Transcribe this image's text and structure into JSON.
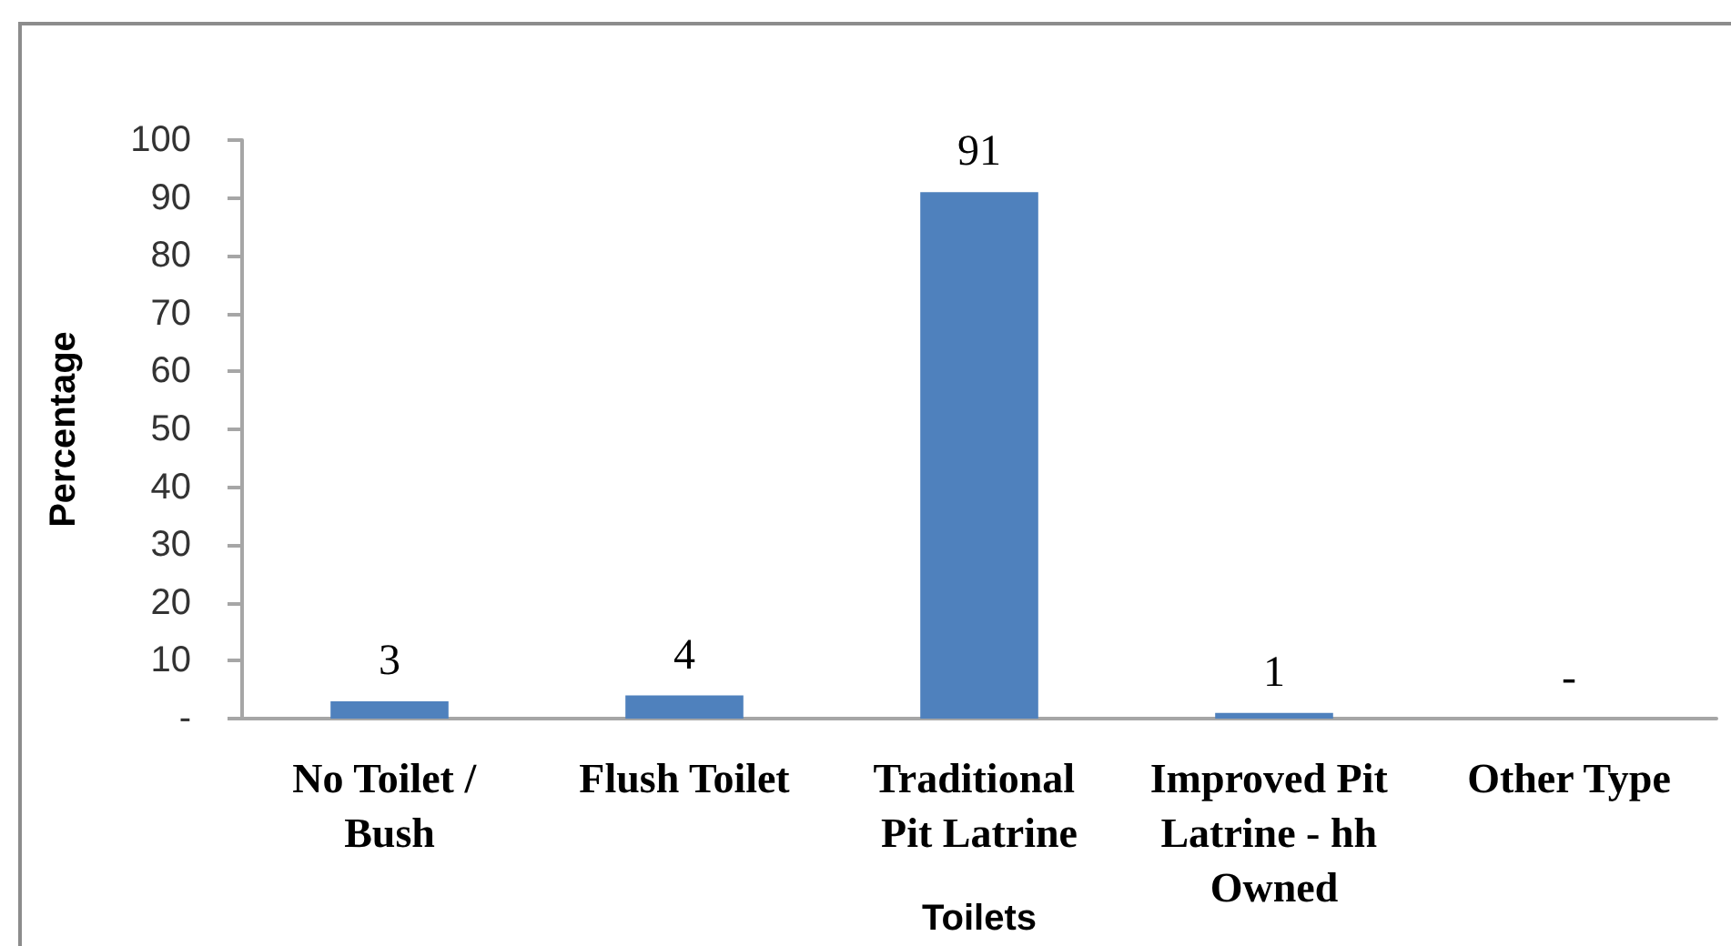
{
  "chart_data": {
    "type": "bar",
    "xlabel": "Toilets",
    "ylabel": "Percentage",
    "categories": [
      "No Toilet / Bush",
      "Flush Toilet",
      "Traditional Pit Latrine",
      "Improved Pit Latrine - hh Owned",
      "Other Type"
    ],
    "values": [
      3,
      4,
      91,
      1,
      0
    ],
    "value_labels": [
      "3",
      "4",
      "91",
      "1",
      "-"
    ],
    "color": "#4f81bd",
    "ylim": [
      0,
      100
    ],
    "yticks": [
      {
        "value": 0,
        "label": "-"
      },
      10,
      20,
      30,
      40,
      50,
      60,
      70,
      80,
      90,
      100
    ]
  }
}
